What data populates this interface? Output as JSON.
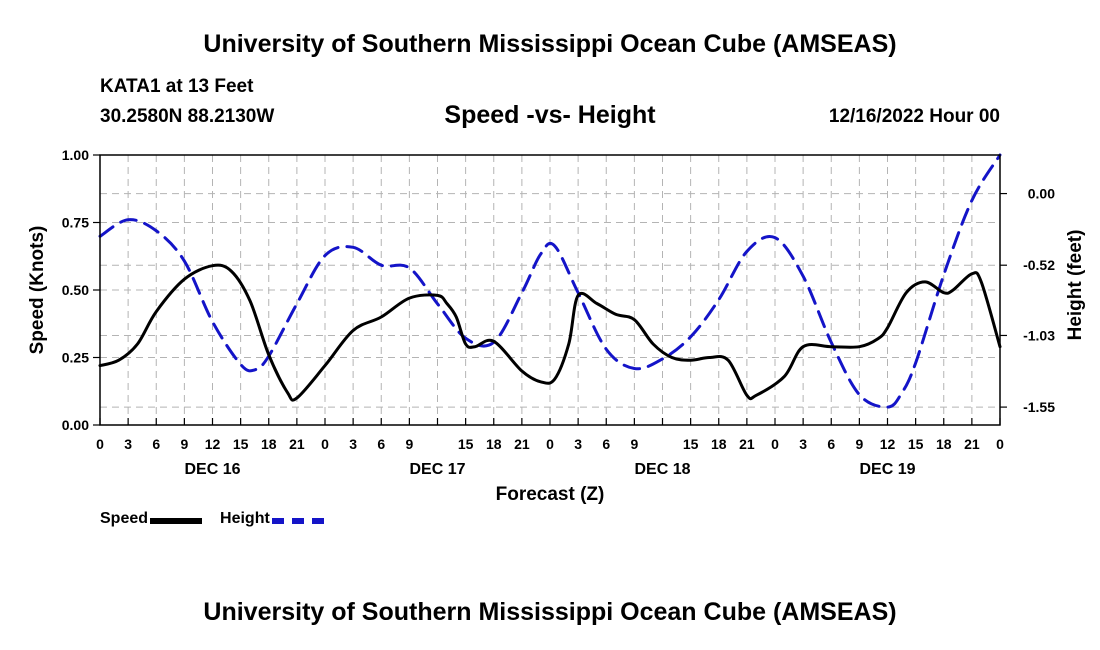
{
  "header": {
    "title": "University of Southern Mississippi Ocean Cube (AMSEAS)",
    "station": "KATA1 at 13 Feet",
    "coords": "30.2580N  88.2130W",
    "subtitle": "Speed -vs- Height",
    "datetime": "12/16/2022 Hour 00"
  },
  "footer": {
    "title": "University of Southern Mississippi Ocean Cube (AMSEAS)"
  },
  "legend": {
    "speed_label": "Speed",
    "height_label": "Height"
  },
  "chart_data": {
    "type": "line",
    "title": "Speed -vs- Height",
    "xlabel": "Forecast (Z)",
    "ylabel": "Speed (Knots)",
    "y2label": "Height (feet)",
    "xlim": [
      0,
      96
    ],
    "ylim": [
      0,
      1.0
    ],
    "y2lim": [
      -1.68,
      0.28
    ],
    "grid": true,
    "legend_position": "bottom-left",
    "x_ticks": [
      0,
      3,
      6,
      9,
      12,
      15,
      18,
      21,
      24,
      27,
      30,
      33,
      36,
      39,
      42,
      45,
      48,
      51,
      54,
      57,
      60,
      63,
      66,
      69,
      72,
      75,
      78,
      81,
      84,
      87,
      90,
      93,
      96
    ],
    "x_tick_labels": [
      "0",
      "3",
      "6",
      "9",
      "12",
      "15",
      "18",
      "21",
      "0",
      "3",
      "6",
      "9",
      "15",
      "18",
      "21",
      "0",
      "3",
      "6",
      "9",
      "15",
      "18",
      "21",
      "0",
      "3",
      "6",
      "9",
      "12",
      "15",
      "18",
      "21",
      "0"
    ],
    "x_tick_positions": [
      0,
      3,
      6,
      9,
      12,
      15,
      18,
      21,
      24,
      27,
      30,
      33,
      39,
      42,
      45,
      48,
      51,
      54,
      57,
      63,
      66,
      69,
      72,
      75,
      78,
      81,
      84,
      87,
      90,
      93,
      96
    ],
    "day_labels": [
      {
        "x": 12,
        "label": "DEC 16"
      },
      {
        "x": 36,
        "label": "DEC 17"
      },
      {
        "x": 60,
        "label": "DEC 18"
      },
      {
        "x": 84,
        "label": "DEC 19"
      }
    ],
    "y_ticks": [
      0.0,
      0.25,
      0.5,
      0.75,
      1.0
    ],
    "y_tick_labels": [
      "0.00",
      "0.25",
      "0.50",
      "0.75",
      "1.00"
    ],
    "y2_ticks": [
      0.0,
      -0.52,
      -1.03,
      -1.55
    ],
    "y2_tick_labels": [
      "0.00",
      "-0.52",
      "-1.03",
      "-1.55"
    ],
    "series": [
      {
        "name": "Speed",
        "axis": "left",
        "color": "#000000",
        "dashed": false,
        "x": [
          0,
          2,
          4,
          6,
          9,
          12,
          14,
          16,
          18,
          20,
          21,
          24,
          27,
          30,
          33,
          36,
          37,
          38,
          39,
          40,
          42,
          45,
          47,
          48.5,
          50,
          51,
          53,
          55,
          57,
          59,
          61,
          63,
          65,
          67,
          69,
          70,
          73,
          75,
          78,
          81,
          83,
          84,
          86,
          88,
          90,
          91,
          93,
          94,
          96
        ],
        "values": [
          0.22,
          0.24,
          0.3,
          0.42,
          0.54,
          0.59,
          0.57,
          0.46,
          0.26,
          0.12,
          0.1,
          0.22,
          0.35,
          0.4,
          0.47,
          0.48,
          0.45,
          0.4,
          0.3,
          0.29,
          0.31,
          0.2,
          0.16,
          0.17,
          0.3,
          0.48,
          0.45,
          0.41,
          0.39,
          0.3,
          0.25,
          0.24,
          0.25,
          0.24,
          0.11,
          0.11,
          0.18,
          0.29,
          0.29,
          0.29,
          0.32,
          0.36,
          0.49,
          0.53,
          0.49,
          0.5,
          0.56,
          0.53,
          0.29
        ]
      },
      {
        "name": "Height",
        "axis": "right",
        "color": "#1414c8",
        "dashed": true,
        "x": [
          0,
          3,
          6,
          9,
          12,
          15,
          16.5,
          18,
          21,
          24,
          27,
          30,
          33,
          36,
          39,
          42,
          45,
          47,
          48.5,
          51,
          54,
          57,
          60,
          63,
          66,
          69,
          72,
          75,
          78,
          81,
          84,
          85.5,
          87,
          90,
          93,
          96
        ],
        "values": [
          -0.31,
          -0.19,
          -0.27,
          -0.49,
          -0.93,
          -1.24,
          -1.28,
          -1.18,
          -0.8,
          -0.45,
          -0.39,
          -0.52,
          -0.54,
          -0.8,
          -1.05,
          -1.08,
          -0.72,
          -0.44,
          -0.38,
          -0.72,
          -1.13,
          -1.27,
          -1.2,
          -1.04,
          -0.77,
          -0.42,
          -0.32,
          -0.6,
          -1.08,
          -1.46,
          -1.55,
          -1.45,
          -1.23,
          -0.59,
          -0.05,
          0.28
        ]
      }
    ]
  }
}
